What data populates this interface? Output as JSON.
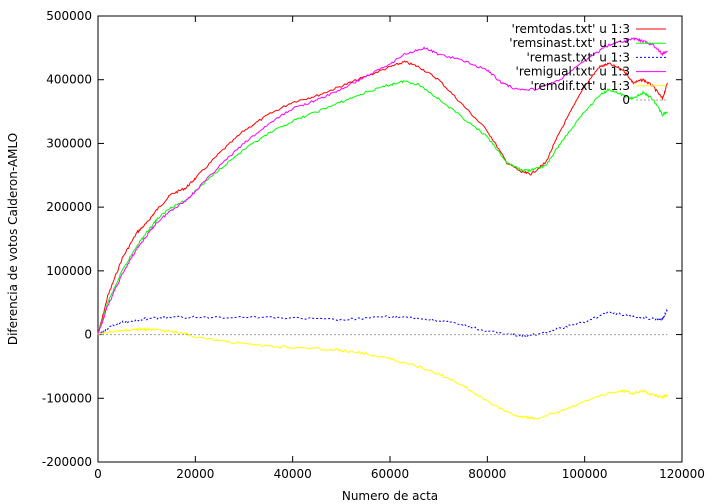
{
  "chart_data": {
    "type": "line",
    "title": "",
    "xlabel": "Numero de acta",
    "ylabel": "Diferencia de votos Calderon-AMLO",
    "xlim": [
      0,
      120000
    ],
    "ylim": [
      -200000,
      500000
    ],
    "xticks": [
      0,
      20000,
      40000,
      60000,
      80000,
      100000,
      120000
    ],
    "yticks": [
      -200000,
      -100000,
      0,
      100000,
      200000,
      300000,
      400000,
      500000
    ],
    "grid": false,
    "legend_position": "top-right",
    "series": [
      {
        "name": "'remtodas.txt' u 1:3",
        "color": "#ff0000",
        "dash": "solid",
        "x": [
          0,
          2000,
          5000,
          8000,
          10000,
          12000,
          15000,
          18000,
          20000,
          25000,
          30000,
          35000,
          40000,
          45000,
          50000,
          55000,
          60000,
          63000,
          66000,
          70000,
          75000,
          80000,
          84000,
          87000,
          89000,
          92000,
          95000,
          100000,
          103000,
          105000,
          108000,
          110000,
          112000,
          114000,
          116000,
          117000
        ],
        "y": [
          0,
          60000,
          120000,
          160000,
          175000,
          195000,
          220000,
          230000,
          245000,
          285000,
          320000,
          345000,
          365000,
          375000,
          390000,
          405000,
          420000,
          428000,
          420000,
          400000,
          360000,
          320000,
          270000,
          255000,
          252000,
          270000,
          320000,
          390000,
          420000,
          425000,
          415000,
          395000,
          400000,
          390000,
          370000,
          395000
        ]
      },
      {
        "name": "'remsinast.txt' u 1:3",
        "color": "#00ff00",
        "dash": "solid",
        "x": [
          0,
          2000,
          5000,
          8000,
          10000,
          12000,
          15000,
          18000,
          20000,
          25000,
          30000,
          35000,
          40000,
          45000,
          50000,
          55000,
          60000,
          63000,
          66000,
          70000,
          75000,
          80000,
          84000,
          87000,
          89000,
          92000,
          95000,
          100000,
          103000,
          105000,
          108000,
          110000,
          112000,
          114000,
          116000,
          117000
        ],
        "y": [
          0,
          50000,
          100000,
          140000,
          160000,
          180000,
          200000,
          210000,
          225000,
          260000,
          290000,
          315000,
          335000,
          350000,
          365000,
          380000,
          392000,
          398000,
          392000,
          370000,
          340000,
          310000,
          270000,
          258000,
          258000,
          265000,
          300000,
          350000,
          375000,
          385000,
          375000,
          370000,
          380000,
          370000,
          345000,
          350000
        ]
      },
      {
        "name": "'remast.txt' u 1:3",
        "color": "#0000ff",
        "dash": "dotted",
        "x": [
          0,
          2000,
          5000,
          8000,
          10000,
          15000,
          20000,
          30000,
          40000,
          50000,
          60000,
          65000,
          70000,
          75000,
          80000,
          85000,
          88000,
          90000,
          95000,
          100000,
          105000,
          110000,
          114000,
          116000,
          117000
        ],
        "y": [
          0,
          10000,
          20000,
          22000,
          25000,
          27000,
          27000,
          28000,
          26000,
          23000,
          28000,
          26000,
          22000,
          15000,
          5000,
          0,
          -2000,
          0,
          10000,
          20000,
          35000,
          28000,
          25000,
          25000,
          38000
        ]
      },
      {
        "name": "'remigual.txt' u 1:3",
        "color": "#ff00ff",
        "dash": "solid",
        "x": [
          0,
          2000,
          5000,
          8000,
          10000,
          12000,
          15000,
          18000,
          20000,
          25000,
          30000,
          35000,
          40000,
          45000,
          50000,
          55000,
          60000,
          63000,
          67000,
          70000,
          75000,
          80000,
          83000,
          86000,
          90000,
          95000,
          100000,
          105000,
          108000,
          110000,
          112000,
          114000,
          116000,
          117000
        ],
        "y": [
          0,
          45000,
          95000,
          135000,
          155000,
          175000,
          195000,
          210000,
          225000,
          265000,
          300000,
          330000,
          355000,
          368000,
          385000,
          405000,
          425000,
          440000,
          450000,
          440000,
          430000,
          415000,
          395000,
          385000,
          385000,
          400000,
          430000,
          455000,
          460000,
          465000,
          460000,
          455000,
          440000,
          445000
        ]
      },
      {
        "name": "'remdif.txt' u 1:3",
        "color": "#ffff00",
        "dash": "solid",
        "x": [
          0,
          2000,
          5000,
          8000,
          10000,
          12000,
          15000,
          18000,
          20000,
          25000,
          30000,
          35000,
          40000,
          45000,
          50000,
          55000,
          60000,
          65000,
          70000,
          75000,
          80000,
          85000,
          88000,
          90000,
          95000,
          100000,
          105000,
          108000,
          110000,
          112000,
          114000,
          116000,
          117000
        ],
        "y": [
          0,
          4000,
          6000,
          8000,
          8000,
          7000,
          5000,
          1000,
          -3000,
          -10000,
          -15000,
          -18000,
          -20000,
          -22000,
          -25000,
          -30000,
          -38000,
          -48000,
          -62000,
          -80000,
          -105000,
          -125000,
          -130000,
          -132000,
          -120000,
          -105000,
          -92000,
          -88000,
          -92000,
          -88000,
          -95000,
          -98000,
          -95000
        ]
      },
      {
        "name": "0",
        "color": "#a0a0a0",
        "dash": "dotted",
        "x": [
          0,
          117000
        ],
        "y": [
          0,
          0
        ]
      }
    ]
  }
}
